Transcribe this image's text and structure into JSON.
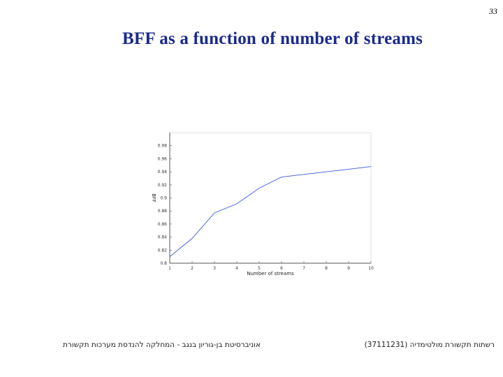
{
  "page_number": "33",
  "slide_title": "BFF as a function of number of streams",
  "footer": {
    "left": "אוניברסיטת בן-גוריון בנגב - המחלקה להנדסת מערכות תקשורת",
    "right": "רשתות תקשורת מולטימדיה (37111231)"
  },
  "colors": {
    "title": "#1a2a8c",
    "line": "#3b5bdb",
    "axis": "#555555"
  },
  "chart_data": {
    "type": "line",
    "title": "",
    "xlabel": "Number of streams",
    "ylabel": "BFF",
    "x_ticks": [
      "1",
      "2",
      "3",
      "4",
      "5",
      "6",
      "7",
      "8",
      "9",
      "10"
    ],
    "y_ticks": [
      "0.8",
      "0.82",
      "0.84",
      "0.86",
      "0.88",
      "0.9",
      "0.92",
      "0.94",
      "0.96",
      "0.98"
    ],
    "xlim": [
      1,
      10
    ],
    "ylim": [
      0.8,
      1.0
    ],
    "grid": false,
    "series": [
      {
        "x": [
          1,
          2,
          3,
          4,
          5,
          6,
          7,
          8,
          9,
          10
        ],
        "y": [
          0.81,
          0.838,
          0.877,
          0.891,
          0.915,
          0.932,
          0.936,
          0.94,
          0.944,
          0.948
        ]
      }
    ]
  }
}
